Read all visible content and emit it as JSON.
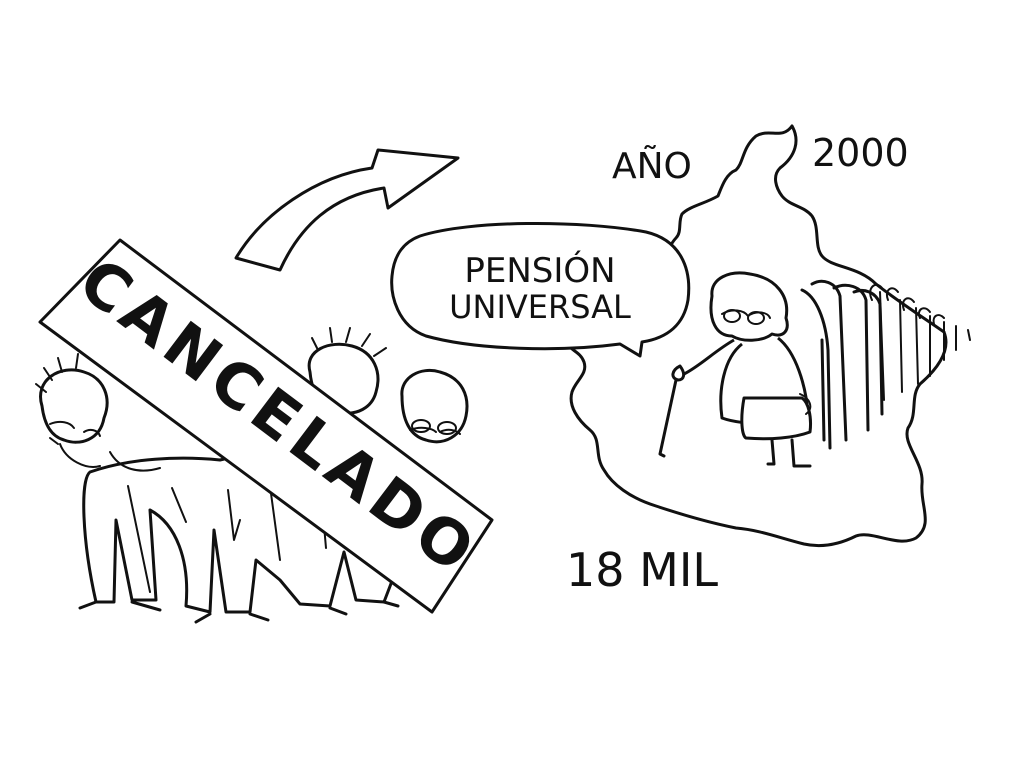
{
  "labels": {
    "year_prefix": "AÑO",
    "year_value": "2000",
    "speech_line_1": "PENSIÓN",
    "speech_line_2": "UNIVERSAL",
    "count": "18 MIL",
    "stamp": "CANCELADO"
  },
  "colors": {
    "ink": "#111111",
    "paper": "#ffffff"
  }
}
